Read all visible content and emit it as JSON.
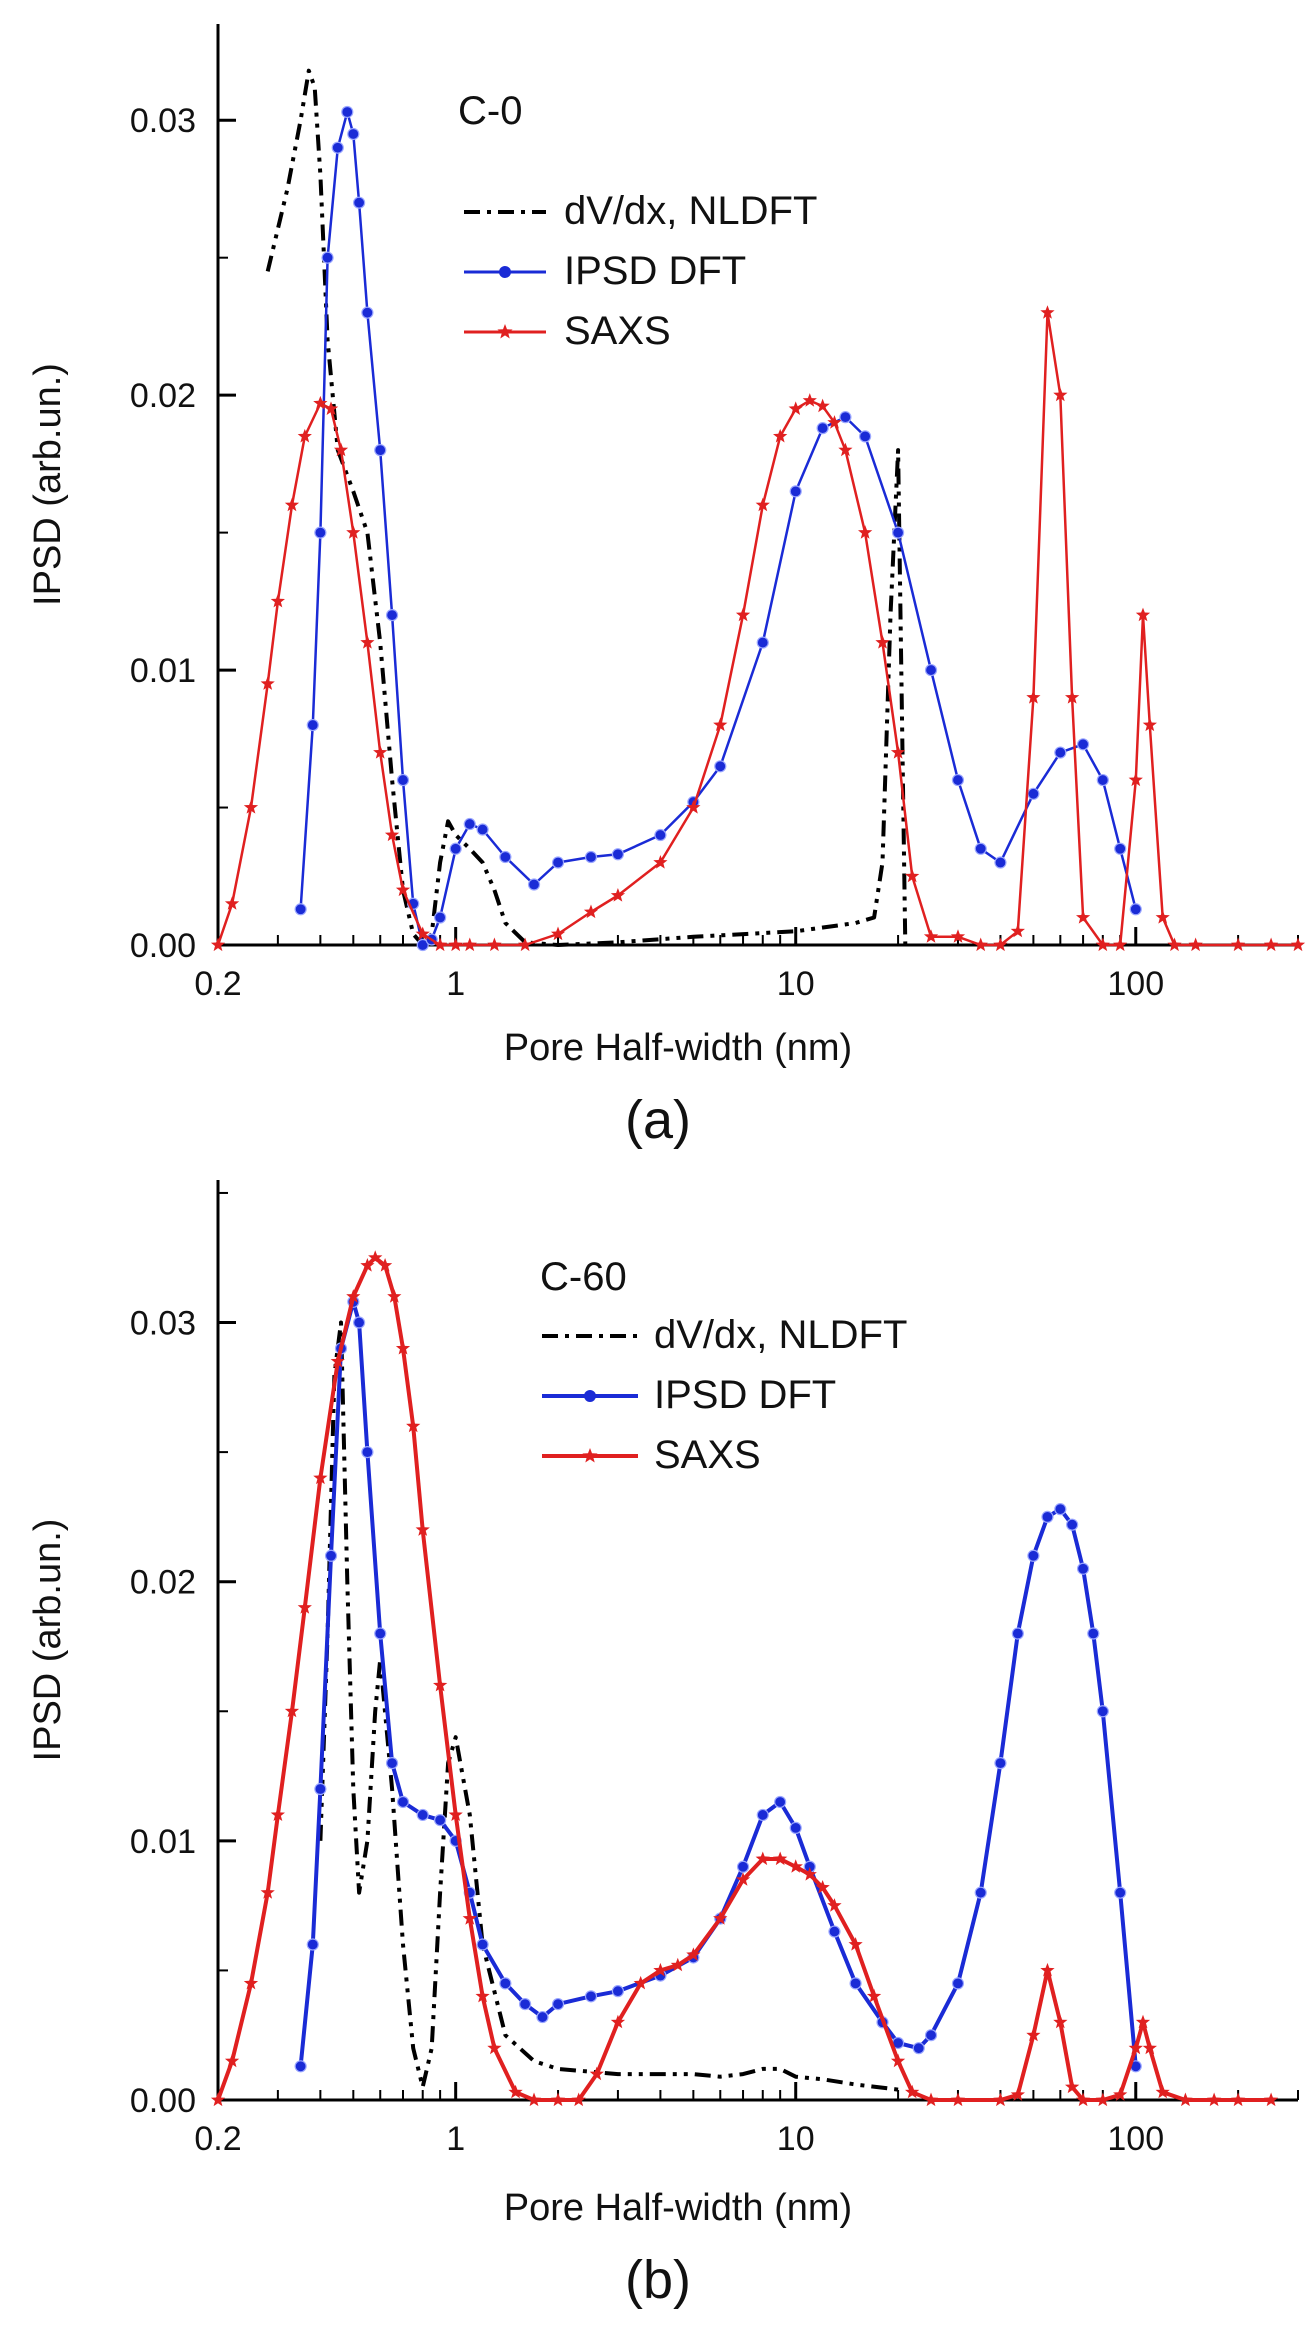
{
  "chart_data": [
    {
      "type": "line",
      "panel": "(a)",
      "sample": "C-0",
      "xlabel": "Pore  Half-width  (nm)",
      "ylabel": "IPSD  (arb.un.)",
      "xscale": "log",
      "xlim": [
        0.2,
        300
      ],
      "ylim": [
        0,
        0.0335
      ],
      "xticks": [
        0.2,
        1,
        10,
        100
      ],
      "xtick_labels": [
        "0.2",
        "1",
        "10",
        "100"
      ],
      "yticks": [
        0,
        0.01,
        0.02,
        0.03
      ],
      "ytick_labels": [
        "0.00",
        "0.01",
        "0.02",
        "0.03"
      ],
      "legend_location": "top-center",
      "series": [
        {
          "name": "dV/dx, NLDFT",
          "style": "dash-dot",
          "color": "#000000",
          "x": [
            0.28,
            0.32,
            0.35,
            0.37,
            0.385,
            0.4,
            0.42,
            0.45,
            0.5,
            0.55,
            0.6,
            0.65,
            0.7,
            0.75,
            0.8,
            0.85,
            0.9,
            0.95,
            1.0,
            1.1,
            1.2,
            1.3,
            1.4,
            1.6,
            2.0,
            3.0,
            5.0,
            10.0,
            15.0,
            17.0,
            18.0,
            19.0,
            20.0,
            21.0
          ],
          "y": [
            0.0245,
            0.0275,
            0.03,
            0.0318,
            0.0312,
            0.028,
            0.022,
            0.018,
            0.0165,
            0.015,
            0.011,
            0.006,
            0.002,
            0.0004,
            0.0,
            0.0004,
            0.003,
            0.0045,
            0.004,
            0.0035,
            0.003,
            0.002,
            0.0008,
            0.0001,
            0.0,
            0.0001,
            0.0003,
            0.0005,
            0.0008,
            0.001,
            0.003,
            0.012,
            0.018,
            0.0
          ]
        },
        {
          "name": "IPSD DFT",
          "style": "line-circle",
          "color": "#1a2bd6",
          "x": [
            0.35,
            0.38,
            0.4,
            0.42,
            0.45,
            0.48,
            0.5,
            0.52,
            0.55,
            0.6,
            0.65,
            0.7,
            0.75,
            0.8,
            0.85,
            0.9,
            1.0,
            1.1,
            1.2,
            1.4,
            1.7,
            2.0,
            2.5,
            3.0,
            4.0,
            5.0,
            6.0,
            8.0,
            10.0,
            12.0,
            14.0,
            16.0,
            20.0,
            25.0,
            30.0,
            35.0,
            40.0,
            50.0,
            60.0,
            70.0,
            80.0,
            90.0,
            100.0
          ],
          "y": [
            0.0013,
            0.008,
            0.015,
            0.025,
            0.029,
            0.0303,
            0.0295,
            0.027,
            0.023,
            0.018,
            0.012,
            0.006,
            0.0015,
            0.0,
            0.0002,
            0.001,
            0.0035,
            0.0044,
            0.0042,
            0.0032,
            0.0022,
            0.003,
            0.0032,
            0.0033,
            0.004,
            0.0052,
            0.0065,
            0.011,
            0.0165,
            0.0188,
            0.0192,
            0.0185,
            0.015,
            0.01,
            0.006,
            0.0035,
            0.003,
            0.0055,
            0.007,
            0.0073,
            0.006,
            0.0035,
            0.0013
          ]
        },
        {
          "name": "SAXS",
          "style": "line-star",
          "color": "#e02020",
          "x": [
            0.2,
            0.22,
            0.25,
            0.28,
            0.3,
            0.33,
            0.36,
            0.4,
            0.43,
            0.46,
            0.5,
            0.55,
            0.6,
            0.65,
            0.7,
            0.8,
            0.9,
            1.0,
            1.1,
            1.3,
            1.6,
            2.0,
            2.5,
            3.0,
            4.0,
            5.0,
            6.0,
            7.0,
            8.0,
            9.0,
            10.0,
            11.0,
            12.0,
            13.0,
            14.0,
            16.0,
            18.0,
            20.0,
            22.0,
            25.0,
            30.0,
            35.0,
            40.0,
            45.0,
            50.0,
            55.0,
            60.0,
            65.0,
            70.0,
            80.0,
            90.0,
            100.0,
            105.0,
            110.0,
            120.0,
            130.0,
            150.0,
            200.0,
            250.0,
            300.0
          ],
          "y": [
            0.0,
            0.0015,
            0.005,
            0.0095,
            0.0125,
            0.016,
            0.0185,
            0.0197,
            0.0195,
            0.018,
            0.015,
            0.011,
            0.007,
            0.004,
            0.002,
            0.0004,
            0.0,
            0.0,
            0.0,
            0.0,
            0.0,
            0.0004,
            0.0012,
            0.0018,
            0.003,
            0.005,
            0.008,
            0.012,
            0.016,
            0.0185,
            0.0195,
            0.0198,
            0.0196,
            0.019,
            0.018,
            0.015,
            0.011,
            0.007,
            0.0025,
            0.0003,
            0.0003,
            0.0,
            0.0,
            0.0005,
            0.009,
            0.023,
            0.02,
            0.009,
            0.001,
            0.0,
            0.0,
            0.006,
            0.012,
            0.008,
            0.001,
            0.0,
            0.0,
            0.0,
            0.0,
            0.0
          ]
        }
      ]
    },
    {
      "type": "line",
      "panel": "(b)",
      "sample": "C-60",
      "xlabel": "Pore  Half-width  (nm)",
      "ylabel": "IPSD  (arb.un.)",
      "xscale": "log",
      "xlim": [
        0.2,
        300
      ],
      "ylim": [
        0,
        0.0355
      ],
      "xticks": [
        0.2,
        1,
        10,
        100
      ],
      "xtick_labels": [
        "0.2",
        "1",
        "10",
        "100"
      ],
      "yticks": [
        0,
        0.01,
        0.02,
        0.03
      ],
      "ytick_labels": [
        "0.00",
        "0.01",
        "0.02",
        "0.03"
      ],
      "legend_location": "top-center",
      "series": [
        {
          "name": "dV/dx, NLDFT",
          "style": "dash-dot",
          "color": "#000000",
          "x": [
            0.4,
            0.42,
            0.44,
            0.46,
            0.48,
            0.5,
            0.52,
            0.55,
            0.58,
            0.6,
            0.65,
            0.7,
            0.75,
            0.8,
            0.85,
            0.9,
            0.95,
            1.0,
            1.1,
            1.2,
            1.4,
            1.7,
            2.0,
            3.0,
            4.0,
            5.0,
            6.0,
            7.0,
            8.0,
            9.0,
            10.0,
            12.0,
            15.0,
            20.0
          ],
          "y": [
            0.01,
            0.018,
            0.028,
            0.03,
            0.02,
            0.012,
            0.008,
            0.01,
            0.015,
            0.017,
            0.012,
            0.006,
            0.002,
            0.0005,
            0.002,
            0.008,
            0.013,
            0.014,
            0.011,
            0.006,
            0.0025,
            0.0015,
            0.0012,
            0.001,
            0.001,
            0.001,
            0.0009,
            0.001,
            0.0012,
            0.0012,
            0.0009,
            0.0008,
            0.0006,
            0.0004
          ]
        },
        {
          "name": "IPSD DFT",
          "style": "line-circle",
          "color": "#1a2bd6",
          "x": [
            0.35,
            0.38,
            0.4,
            0.43,
            0.46,
            0.5,
            0.52,
            0.55,
            0.6,
            0.65,
            0.7,
            0.8,
            0.9,
            1.0,
            1.1,
            1.2,
            1.4,
            1.6,
            1.8,
            2.0,
            2.5,
            3.0,
            4.0,
            5.0,
            6.0,
            7.0,
            8.0,
            9.0,
            10.0,
            11.0,
            13.0,
            15.0,
            18.0,
            20.0,
            23.0,
            25.0,
            30.0,
            35.0,
            40.0,
            45.0,
            50.0,
            55.0,
            60.0,
            65.0,
            70.0,
            75.0,
            80.0,
            90.0,
            100.0
          ],
          "y": [
            0.0013,
            0.006,
            0.012,
            0.021,
            0.029,
            0.0308,
            0.03,
            0.025,
            0.018,
            0.013,
            0.0115,
            0.011,
            0.0108,
            0.01,
            0.008,
            0.006,
            0.0045,
            0.0037,
            0.0032,
            0.0037,
            0.004,
            0.0042,
            0.0048,
            0.0055,
            0.007,
            0.009,
            0.011,
            0.0115,
            0.0105,
            0.009,
            0.0065,
            0.0045,
            0.003,
            0.0022,
            0.002,
            0.0025,
            0.0045,
            0.008,
            0.013,
            0.018,
            0.021,
            0.0225,
            0.0228,
            0.0222,
            0.0205,
            0.018,
            0.015,
            0.008,
            0.0013
          ]
        },
        {
          "name": "SAXS",
          "style": "line-star",
          "color": "#e02020",
          "x": [
            0.2,
            0.22,
            0.25,
            0.28,
            0.3,
            0.33,
            0.36,
            0.4,
            0.45,
            0.5,
            0.55,
            0.58,
            0.62,
            0.66,
            0.7,
            0.75,
            0.8,
            0.9,
            1.0,
            1.1,
            1.2,
            1.3,
            1.5,
            1.7,
            2.0,
            2.3,
            2.6,
            3.0,
            3.5,
            4.0,
            4.5,
            5.0,
            6.0,
            7.0,
            8.0,
            9.0,
            10.0,
            11.0,
            12.0,
            13.0,
            15.0,
            17.0,
            20.0,
            22.0,
            25.0,
            30.0,
            40.0,
            45.0,
            50.0,
            55.0,
            60.0,
            65.0,
            70.0,
            80.0,
            90.0,
            100.0,
            105.0,
            110.0,
            120.0,
            140.0,
            170.0,
            200.0,
            250.0
          ],
          "y": [
            0.0,
            0.0015,
            0.0045,
            0.008,
            0.011,
            0.015,
            0.019,
            0.024,
            0.0285,
            0.031,
            0.0322,
            0.0325,
            0.0322,
            0.031,
            0.029,
            0.026,
            0.022,
            0.016,
            0.011,
            0.007,
            0.004,
            0.002,
            0.0003,
            0.0,
            0.0,
            0.0,
            0.001,
            0.003,
            0.0045,
            0.005,
            0.0052,
            0.0056,
            0.007,
            0.0085,
            0.0093,
            0.0093,
            0.009,
            0.0087,
            0.0082,
            0.0075,
            0.006,
            0.004,
            0.0015,
            0.0003,
            0.0,
            0.0,
            0.0,
            0.0002,
            0.0025,
            0.005,
            0.003,
            0.0005,
            0.0,
            0.0,
            0.0002,
            0.002,
            0.003,
            0.002,
            0.0003,
            0.0,
            0.0,
            0.0,
            0.0
          ]
        }
      ]
    }
  ]
}
